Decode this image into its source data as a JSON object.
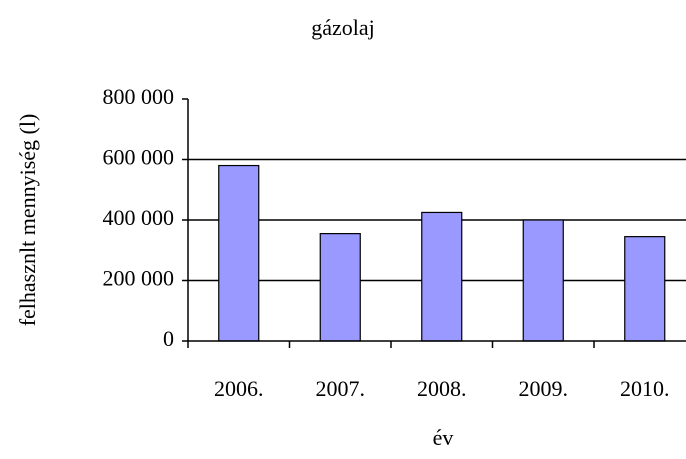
{
  "chart_data": {
    "type": "bar",
    "title": "gázolaj",
    "x_label": "év",
    "y_label": "felhasznlt mennyiség (l)",
    "categories": [
      "2006.",
      "2007.",
      "2008.",
      "2009.",
      "2010."
    ],
    "values": [
      580000,
      355000,
      425000,
      400000,
      345000
    ],
    "color": "#9999ff",
    "ylim": [
      0,
      800000
    ],
    "yticks": [
      0,
      {
        "value": 200000,
        "label": "200 000"
      },
      {
        "value": 400000,
        "label": "400 000"
      },
      {
        "value": 600000,
        "label": "600 000"
      },
      {
        "value": 800000,
        "label": "800 000"
      }
    ],
    "grid": true
  }
}
